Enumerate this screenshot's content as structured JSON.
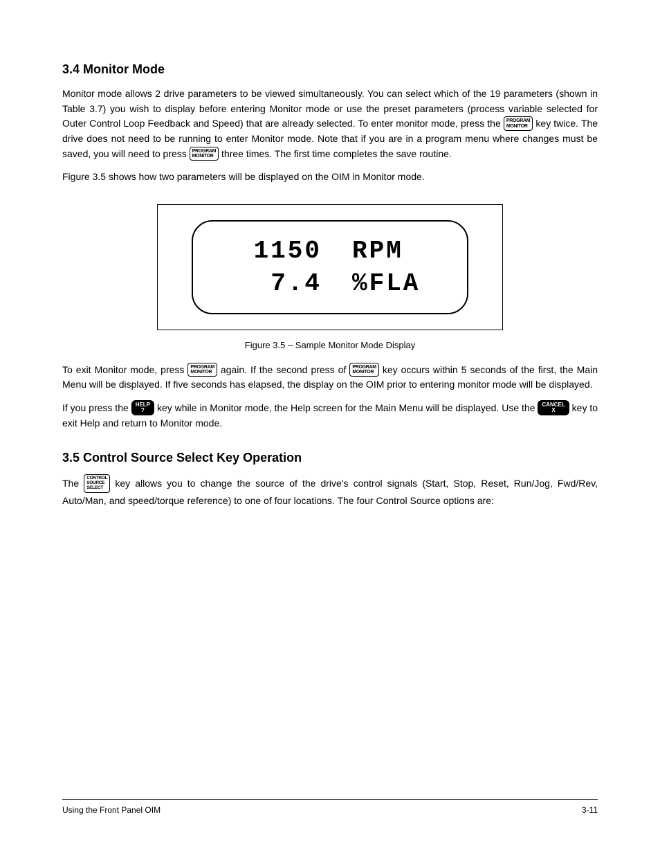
{
  "section1": {
    "heading": "3.4 Monitor Mode",
    "p1a": "Monitor mode allows 2 drive parameters to be viewed simultaneously. You can select which of the 19 parameters (shown in Table 3.7) you wish to display before entering Monitor mode or use the preset parameters (process variable selected for Outer Control Loop Feedback and Speed) that are already selected. To enter monitor mode, press the ",
    "p1b": " key twice. The drive does not need to be running to enter Monitor mode. Note that if you are in a program menu where changes must be saved, you will need to press ",
    "p1c": " three times. The first time completes the save routine.",
    "p2": "Figure 3.5 shows how two parameters will be displayed on the OIM in Monitor mode.",
    "p3a": "To exit Monitor mode, press ",
    "p3b": " again. If the second press of ",
    "p3c": " key occurs within 5 seconds of the first, the Main Menu will be displayed. If five seconds has elapsed, the display on the OIM prior to entering monitor mode will be displayed.",
    "p4a": "If you press the ",
    "p4b": " key while in Monitor mode, the Help screen for the Main Menu will be displayed. Use the ",
    "p4c": " key to exit Help and return to Monitor mode."
  },
  "section2": {
    "heading": "3.5 Control Source Select Key Operation",
    "p1a": "The ",
    "p1b": " key allows you to change the source of the drive's control signals (Start, Stop, Reset, Run/Jog, Fwd/Rev, Auto/Man, and speed/torque reference) to one of four locations. The four Control Source options are:"
  },
  "lcd": {
    "row1_val": "1150",
    "row1_unit": "RPM",
    "row2_val": "7.4",
    "row2_unit": "%FLA"
  },
  "caption": "Figure 3.5 – Sample Monitor Mode Display",
  "buttons": {
    "program_monitor_l1": "PROGRAM",
    "program_monitor_l2": "MONITOR",
    "control_source_l1": "CONTROL",
    "control_source_l2": "SOURCE",
    "control_source_l3": "SELECT",
    "help_l1": "HELP",
    "help_l2": "?",
    "cancel_l1": "CANCEL",
    "cancel_l2": "X"
  },
  "footer": {
    "left": "Using the Front Panel OIM",
    "right": "3-11"
  }
}
